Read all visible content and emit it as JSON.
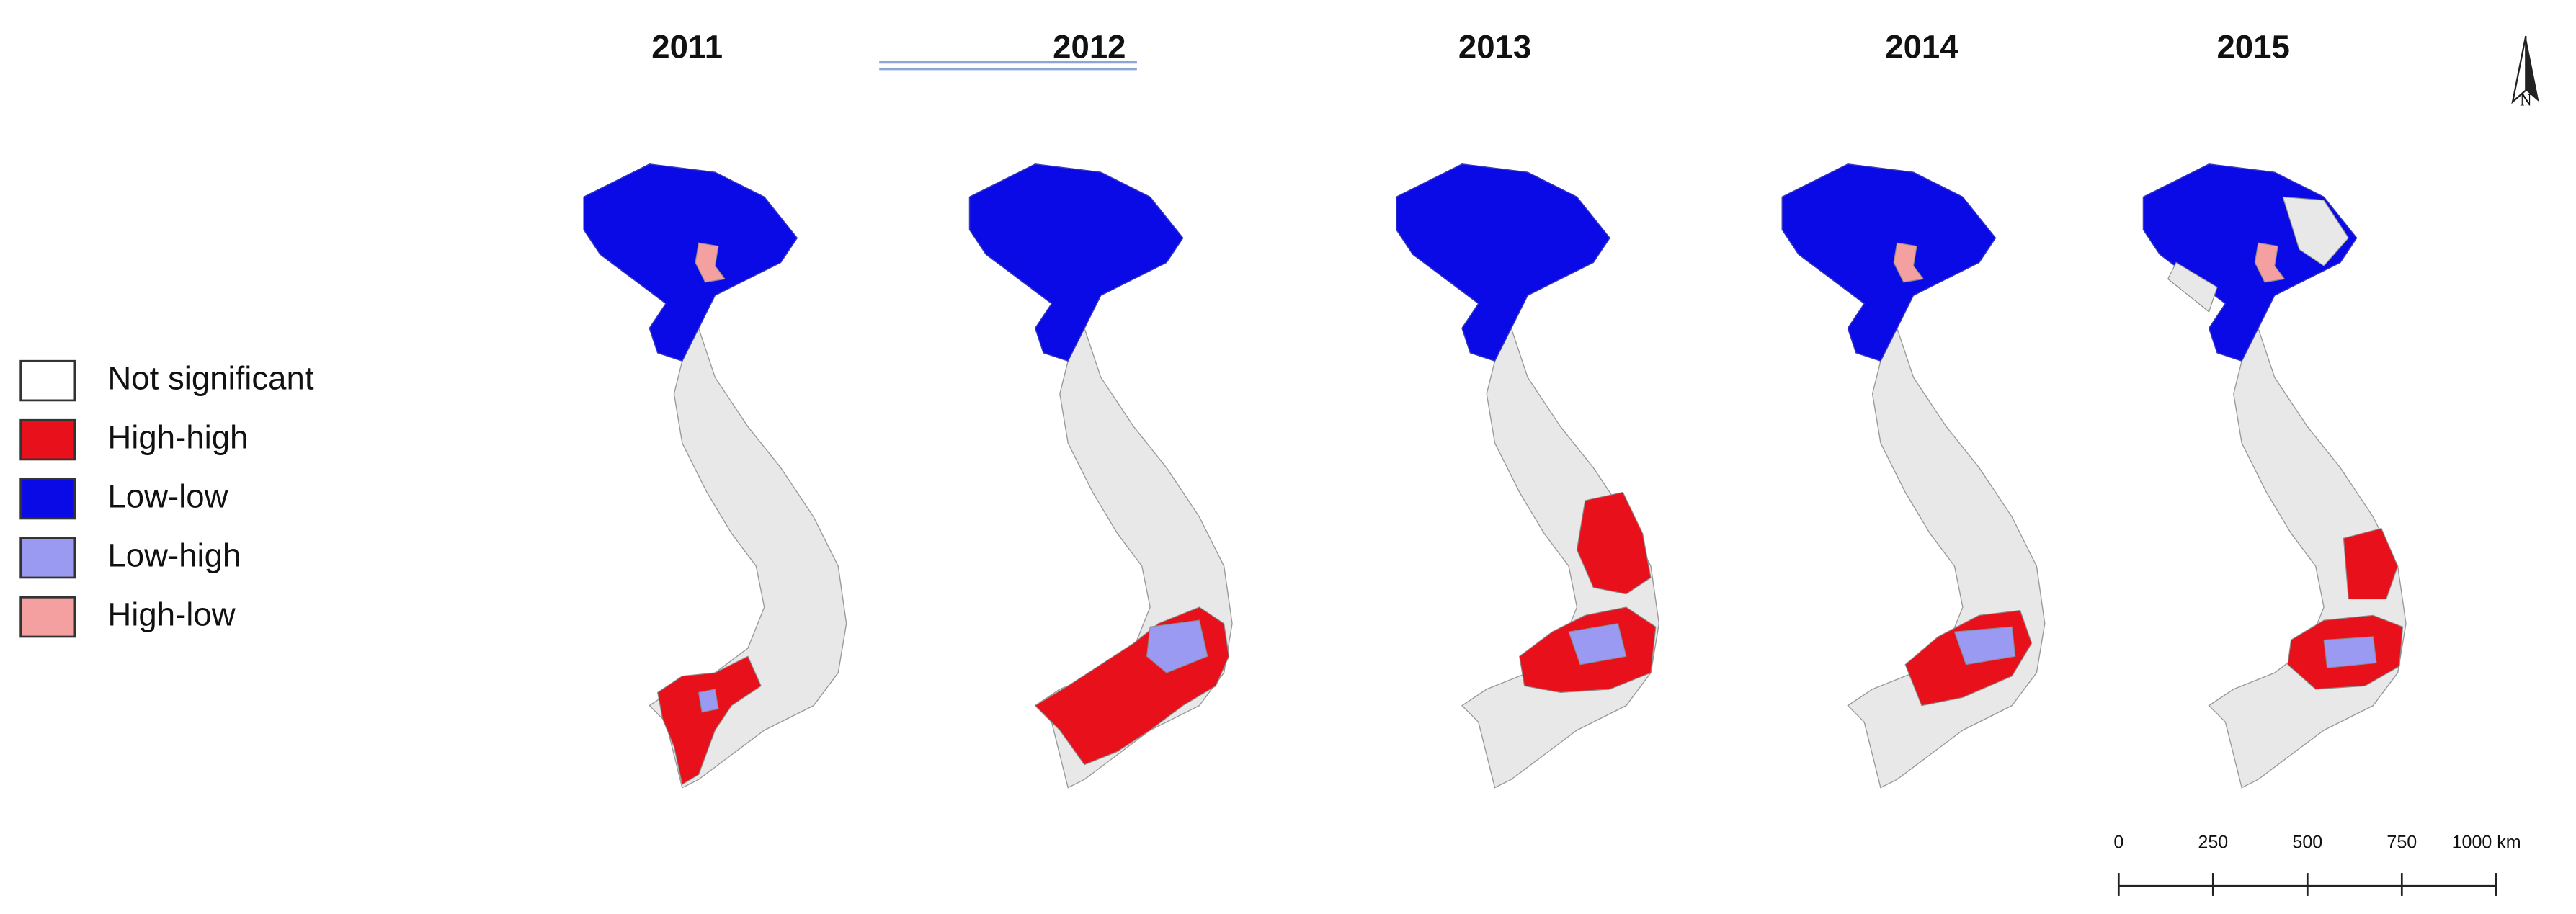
{
  "panels": [
    {
      "title": "2011"
    },
    {
      "title": "2012"
    },
    {
      "title": "2013"
    },
    {
      "title": "2014"
    },
    {
      "title": "2015"
    }
  ],
  "legend": {
    "items": [
      {
        "label": "Not significant",
        "color": "#ffffff"
      },
      {
        "label": "High-high",
        "color": "#e8101a"
      },
      {
        "label": "Low-low",
        "color": "#0a0ae6"
      },
      {
        "label": "Low-high",
        "color": "#9a9af2"
      },
      {
        "label": "High-low",
        "color": "#f4a0a0"
      }
    ]
  },
  "north_arrow": {
    "label": "N"
  },
  "scale_bar": {
    "ticks": [
      0,
      250,
      500,
      750,
      {
        "value": 1000,
        "label": "1000 km"
      }
    ]
  }
}
